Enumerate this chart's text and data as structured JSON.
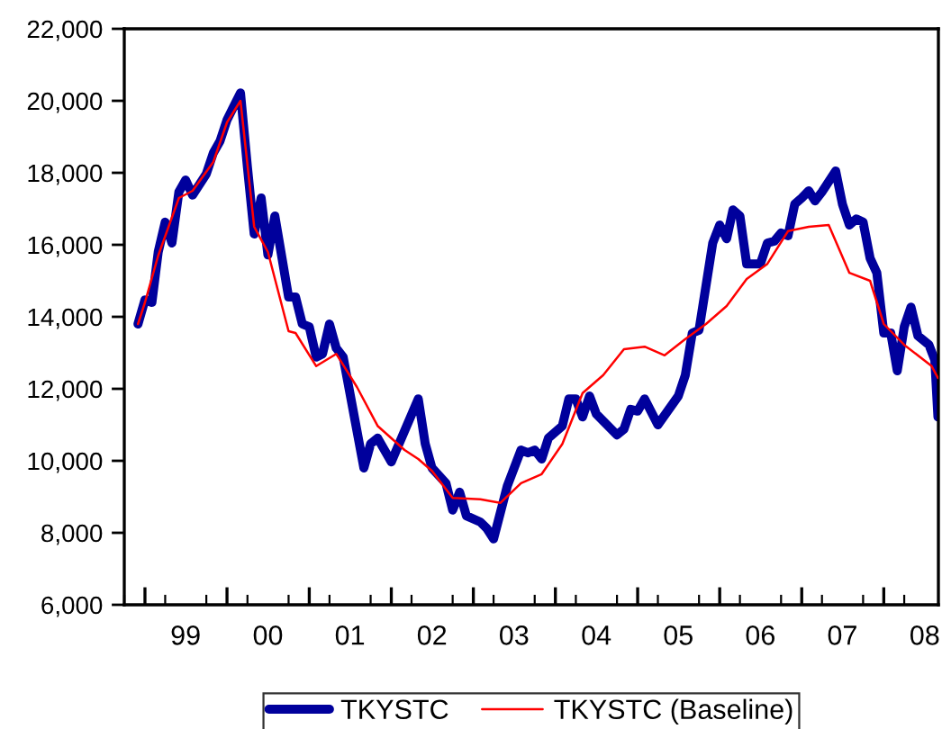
{
  "chart_data": {
    "type": "line",
    "series": [
      {
        "name": "TKYSTC",
        "color": "#00009c",
        "x": [
          "1998-12",
          "1999-01",
          "1999-02",
          "1999-03",
          "1999-04",
          "1999-05",
          "1999-06",
          "1999-07",
          "1999-08",
          "1999-10",
          "1999-11",
          "1999-12",
          "2000-01",
          "2000-03",
          "2000-04",
          "2000-05",
          "2000-06",
          "2000-07",
          "2000-08",
          "2000-10",
          "2000-11",
          "2000-12",
          "2001-01",
          "2001-02",
          "2001-03",
          "2001-04",
          "2001-05",
          "2001-06",
          "2001-09",
          "2001-10",
          "2001-11",
          "2002-01",
          "2002-05",
          "2002-06",
          "2002-07",
          "2002-09",
          "2002-10",
          "2002-11",
          "2002-12",
          "2003-02",
          "2003-03",
          "2003-04",
          "2003-06",
          "2003-08",
          "2003-09",
          "2003-10",
          "2003-11",
          "2003-12",
          "2004-02",
          "2004-03",
          "2004-04",
          "2004-05",
          "2004-06",
          "2004-07",
          "2004-10",
          "2004-11",
          "2004-12",
          "2005-01",
          "2005-02",
          "2005-04",
          "2005-07",
          "2005-08",
          "2005-09",
          "2005-10",
          "2005-12",
          "2006-01",
          "2006-02",
          "2006-03",
          "2006-04",
          "2006-05",
          "2006-07",
          "2006-08",
          "2006-09",
          "2006-10",
          "2006-11",
          "2006-12",
          "2007-01",
          "2007-02",
          "2007-03",
          "2007-04",
          "2007-06",
          "2007-07",
          "2007-08",
          "2007-09",
          "2007-10",
          "2007-11",
          "2007-12",
          "2008-01",
          "2008-02",
          "2008-03",
          "2008-04",
          "2008-05",
          "2008-06",
          "2008-07-20",
          "2008-08-15",
          "2008-08-29"
        ],
        "values": [
          13800,
          14470,
          14400,
          15800,
          16630,
          16050,
          17470,
          17800,
          17380,
          17970,
          18550,
          18880,
          19470,
          20220,
          18150,
          16300,
          17300,
          15720,
          16800,
          14550,
          14550,
          13800,
          13720,
          12880,
          12970,
          13800,
          13130,
          12880,
          9800,
          10470,
          10630,
          9970,
          11720,
          10470,
          9800,
          9380,
          8630,
          9130,
          8470,
          8300,
          8130,
          7830,
          9300,
          10300,
          10220,
          10300,
          10050,
          10630,
          10970,
          11720,
          11720,
          11220,
          11800,
          11300,
          10720,
          10880,
          11430,
          11380,
          11720,
          11000,
          11800,
          12380,
          13550,
          13630,
          16050,
          16550,
          16170,
          16970,
          16800,
          15470,
          15470,
          16050,
          16100,
          16330,
          16250,
          17130,
          17300,
          17500,
          17220,
          17470,
          18050,
          17130,
          16550,
          16720,
          16630,
          15630,
          15220,
          13550,
          13550,
          12500,
          13720,
          14270,
          13470,
          13220,
          12800,
          11220
        ]
      },
      {
        "name": "TKYSTC (Baseline)",
        "color": "#ff0000",
        "x": [
          "1998-12",
          "1999-01",
          "1999-03",
          "1999-06",
          "1999-08",
          "1999-11",
          "2000-01",
          "2000-03",
          "2000-05",
          "2000-07",
          "2000-10",
          "2000-11",
          "2001-02",
          "2001-05",
          "2001-08",
          "2001-11",
          "2002-03",
          "2002-05",
          "2002-07",
          "2002-10",
          "2003-02",
          "2003-05",
          "2003-08",
          "2003-11",
          "2004-02",
          "2004-05",
          "2004-08",
          "2004-11",
          "2005-02",
          "2005-05",
          "2005-08",
          "2005-11",
          "2006-02",
          "2006-05",
          "2006-08",
          "2006-11",
          "2007-02",
          "2007-05",
          "2007-08",
          "2007-11",
          "2008-01",
          "2008-04",
          "2008-08",
          "2008-08-29"
        ],
        "values": [
          13800,
          14400,
          15700,
          17300,
          17500,
          18300,
          19400,
          20000,
          16500,
          15800,
          13600,
          13550,
          12630,
          12970,
          12050,
          10970,
          10300,
          10050,
          9720,
          8970,
          8930,
          8830,
          9380,
          9630,
          10470,
          11880,
          12380,
          13100,
          13170,
          12930,
          13380,
          13800,
          14300,
          15050,
          15470,
          16380,
          16500,
          16550,
          15220,
          15000,
          13800,
          13220,
          12630,
          12300
        ]
      }
    ],
    "xlim": [
      "1998-10-01",
      "2008-08-31"
    ],
    "xticks": [
      {
        "value": "1999-01-01",
        "label": null
      },
      {
        "value": "1999-07-01",
        "label": "99"
      },
      {
        "value": "2000-01-01",
        "label": null
      },
      {
        "value": "2000-07-01",
        "label": "00"
      },
      {
        "value": "2001-01-01",
        "label": null
      },
      {
        "value": "2001-07-01",
        "label": "01"
      },
      {
        "value": "2002-01-01",
        "label": null
      },
      {
        "value": "2002-07-01",
        "label": "02"
      },
      {
        "value": "2003-01-01",
        "label": null
      },
      {
        "value": "2003-07-01",
        "label": "03"
      },
      {
        "value": "2004-01-01",
        "label": null
      },
      {
        "value": "2004-07-01",
        "label": "04"
      },
      {
        "value": "2005-01-01",
        "label": null
      },
      {
        "value": "2005-07-01",
        "label": "05"
      },
      {
        "value": "2006-01-01",
        "label": null
      },
      {
        "value": "2006-07-01",
        "label": "06"
      },
      {
        "value": "2007-01-01",
        "label": null
      },
      {
        "value": "2007-07-01",
        "label": "07"
      },
      {
        "value": "2008-01-01",
        "label": null
      },
      {
        "value": "2008-07-01",
        "label": "08"
      }
    ],
    "ylim": [
      6000,
      22000
    ],
    "yticks": [
      {
        "value": 6000,
        "label": "6,000"
      },
      {
        "value": 8000,
        "label": "8,000"
      },
      {
        "value": 10000,
        "label": "10,000"
      },
      {
        "value": 12000,
        "label": "12,000"
      },
      {
        "value": 14000,
        "label": "14,000"
      },
      {
        "value": 16000,
        "label": "16,000"
      },
      {
        "value": 18000,
        "label": "18,000"
      },
      {
        "value": 20000,
        "label": "20,000"
      },
      {
        "value": 22000,
        "label": "22,000"
      }
    ],
    "grid": false,
    "legend": "bottom",
    "marker": "none",
    "line_style": "solid"
  }
}
